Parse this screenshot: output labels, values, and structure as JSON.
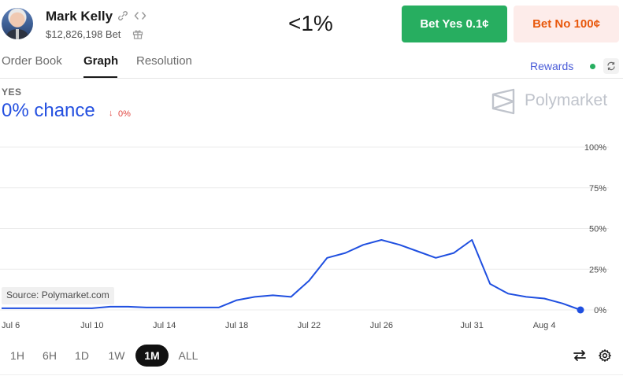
{
  "market": {
    "name": "Mark Kelly",
    "volume": "$12,826,198 Bet",
    "headline_pct": "<1%"
  },
  "icons": {
    "avatar": "avatar-photo",
    "link": "link-icon",
    "embed": "code-icon",
    "gift": "gift-icon",
    "refresh": "refresh-icon",
    "swap": "swap-icon",
    "settings": "gear-icon",
    "brand": "polymarket-logo-icon"
  },
  "buttons": {
    "yes_label": "Bet Yes 0.1¢",
    "no_label": "Bet No 100¢"
  },
  "tabs": [
    {
      "label": "Order Book",
      "active": false
    },
    {
      "label": "Graph",
      "active": true
    },
    {
      "label": "Resolution",
      "active": false
    }
  ],
  "rewards_label": "Rewards",
  "outcome_label": "YES",
  "chance_text": "0% chance",
  "change": {
    "arrow": "↓",
    "text": "0%"
  },
  "brand": "Polymarket",
  "source_label": "Source: Polymarket.com",
  "ranges": [
    {
      "label": "1H",
      "active": false
    },
    {
      "label": "6H",
      "active": false
    },
    {
      "label": "1D",
      "active": false
    },
    {
      "label": "1W",
      "active": false
    },
    {
      "label": "1M",
      "active": true
    },
    {
      "label": "ALL",
      "active": false
    }
  ],
  "colors": {
    "accent_blue": "#2450e0",
    "yes_green": "#27ae60",
    "no_orange": "#e8580c",
    "no_bg": "#fdecea",
    "down_red": "#e0443e",
    "line": "#1f4fe0"
  },
  "chart_data": {
    "type": "line",
    "title": "",
    "xlabel": "",
    "ylabel": "",
    "ylim": [
      0,
      100
    ],
    "y_ticks": [
      "100%",
      "75%",
      "50%",
      "25%",
      "0%"
    ],
    "x_ticks": [
      "Jul 6",
      "Jul 10",
      "Jul 14",
      "Jul 18",
      "Jul 22",
      "Jul 26",
      "Jul 31",
      "Aug 4"
    ],
    "grid": true,
    "series": [
      {
        "color": "#1f4fe0",
        "x": [
          "Jul 5",
          "Jul 6",
          "Jul 7",
          "Jul 8",
          "Jul 9",
          "Jul 10",
          "Jul 11",
          "Jul 12",
          "Jul 13",
          "Jul 14",
          "Jul 15",
          "Jul 16",
          "Jul 17",
          "Jul 18",
          "Jul 19",
          "Jul 20",
          "Jul 21",
          "Jul 22",
          "Jul 23",
          "Jul 24",
          "Jul 25",
          "Jul 26",
          "Jul 27",
          "Jul 28",
          "Jul 29",
          "Jul 30",
          "Jul 31",
          "Aug 1",
          "Aug 2",
          "Aug 3",
          "Aug 4",
          "Aug 5",
          "Aug 6"
        ],
        "y": [
          1,
          1,
          1,
          1,
          1,
          1,
          2,
          2,
          1.5,
          1.5,
          1.5,
          1.5,
          1.5,
          6,
          8,
          9,
          8,
          18,
          32,
          35,
          40,
          43,
          40,
          36,
          32,
          35,
          43,
          16,
          10,
          8,
          7,
          4,
          0
        ]
      }
    ]
  }
}
